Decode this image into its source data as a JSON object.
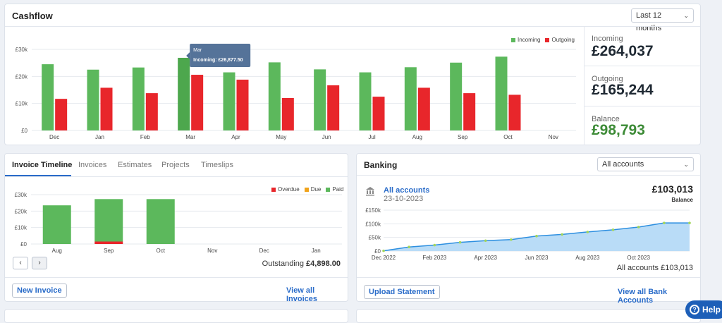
{
  "cashflow": {
    "title": "Cashflow",
    "period": "Last 12 months",
    "legend_incoming": "Incoming",
    "legend_outgoing": "Outgoing",
    "tooltip_month": "Mar",
    "tooltip_text": "Incoming: £26,877.50",
    "stats": {
      "incoming_label": "Incoming",
      "incoming_value": "£264,037",
      "outgoing_label": "Outgoing",
      "outgoing_value": "£165,244",
      "balance_label": "Balance",
      "balance_value": "£98,793"
    }
  },
  "invoices": {
    "tabs": [
      "Invoice Timeline",
      "Invoices",
      "Estimates",
      "Projects",
      "Timeslips"
    ],
    "legend": [
      "Overdue",
      "Due",
      "Paid"
    ],
    "outstanding_label": "Outstanding",
    "outstanding_value": "£4,898.00",
    "new_invoice": "New Invoice",
    "view_all": "View all Invoices",
    "prev_icon": "‹",
    "next_icon": "›"
  },
  "banking": {
    "title": "Banking",
    "accounts_select": "All accounts",
    "account_name": "All accounts",
    "account_date": "23-10-2023",
    "balance_value": "£103,013",
    "balance_label": "Balance",
    "footer_text": "All accounts £103,013",
    "upload": "Upload Statement",
    "view_all": "View all Bank Accounts"
  },
  "help": {
    "label": "Help"
  },
  "colors": {
    "incoming": "#5cb85c",
    "outgoing": "#e8262b",
    "due": "#f0a31a",
    "balance_positive": "#3d8b37",
    "link": "#2a6cc9",
    "area": "#b9dcf7",
    "line": "#2d8fe0"
  },
  "chart_data": [
    {
      "type": "bar",
      "categories": [
        "Dec",
        "Jan",
        "Feb",
        "Mar",
        "Apr",
        "May",
        "Jun",
        "Jul",
        "Aug",
        "Sep",
        "Oct",
        "Nov"
      ],
      "series": [
        {
          "name": "Incoming",
          "values": [
            24500,
            22500,
            23300,
            26877.5,
            21500,
            25200,
            22600,
            21500,
            23400,
            25100,
            27300,
            0
          ]
        },
        {
          "name": "Outgoing",
          "values": [
            11700,
            15800,
            13800,
            20600,
            18800,
            12000,
            16700,
            12500,
            15800,
            13800,
            13200,
            0
          ]
        }
      ],
      "yticks": [
        "£0",
        "£10k",
        "£20k",
        "£30k"
      ],
      "ylim": [
        0,
        30000
      ]
    },
    {
      "type": "bar",
      "categories": [
        "Aug",
        "Sep",
        "Oct",
        "Nov",
        "Dec",
        "Jan"
      ],
      "series": [
        {
          "name": "Overdue",
          "values": [
            0,
            1500,
            0,
            0,
            0,
            0
          ]
        },
        {
          "name": "Due",
          "values": [
            0,
            0,
            0,
            0,
            0,
            0
          ]
        },
        {
          "name": "Paid",
          "values": [
            23500,
            25800,
            27300,
            0,
            0,
            0
          ]
        }
      ],
      "yticks": [
        "£0",
        "£10k",
        "£20k",
        "£30k"
      ],
      "ylim": [
        0,
        30000
      ]
    },
    {
      "type": "area",
      "x": [
        "Dec 2022",
        "Jan 2023",
        "Feb 2023",
        "Mar 2023",
        "Apr 2023",
        "May 2023",
        "Jun 2023",
        "Jul 2023",
        "Aug 2023",
        "Sep 2023",
        "Oct 2023",
        "Nov 2023",
        "Nov 2023"
      ],
      "xticks": [
        "Dec 2022",
        "Feb 2023",
        "Apr 2023",
        "Jun 2023",
        "Aug 2023",
        "Oct 2023"
      ],
      "values": [
        1000,
        15000,
        22000,
        32000,
        38000,
        42000,
        55000,
        61000,
        70000,
        78000,
        88000,
        103000,
        103013
      ],
      "yticks": [
        "£0",
        "£50k",
        "£100k",
        "£150k"
      ],
      "ylim": [
        0,
        150000
      ]
    }
  ]
}
